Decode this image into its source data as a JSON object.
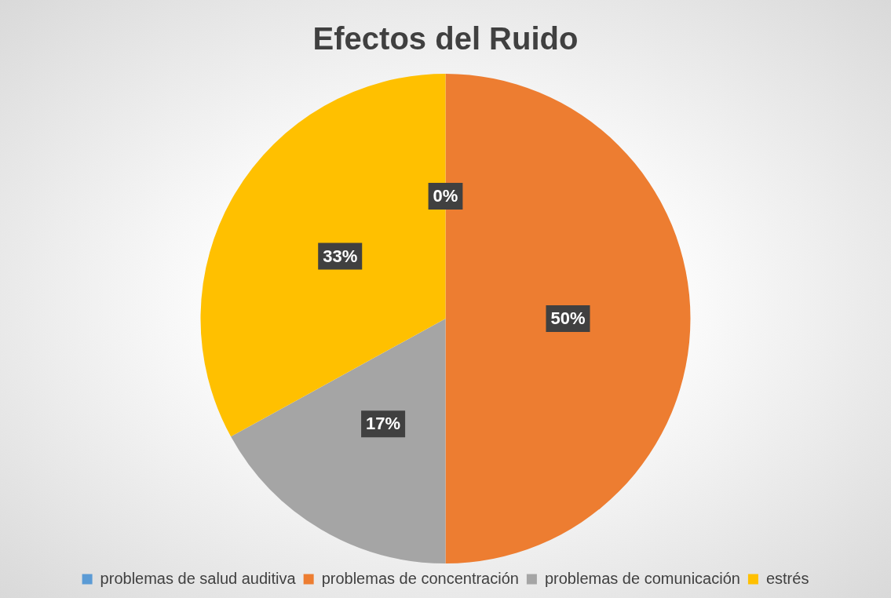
{
  "chart_data": {
    "type": "pie",
    "title": "Efectos del Ruido",
    "categories": [
      "problemas de salud auditiva",
      "problemas de concentración",
      "problemas de comunicación",
      "estrés"
    ],
    "values": [
      0,
      50,
      17,
      33
    ],
    "colors": [
      "#5b9bd5",
      "#ed7d31",
      "#a5a5a5",
      "#ffc000"
    ],
    "value_labels": [
      "0%",
      "50%",
      "17%",
      "33%"
    ],
    "legend": "bottom"
  }
}
